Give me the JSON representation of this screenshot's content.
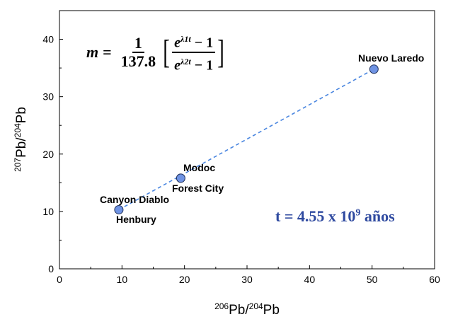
{
  "chart_data": {
    "type": "scatter",
    "xlabel_prefix": "206",
    "xlabel_mid": "Pb/",
    "xlabel_sup2": "204",
    "xlabel_end": "Pb",
    "ylabel_prefix": "207",
    "ylabel_mid": "Pb/",
    "ylabel_sup2": "204",
    "ylabel_end": "Pb",
    "xlim": [
      0,
      60
    ],
    "ylim": [
      0,
      45
    ],
    "xticks": [
      0,
      10,
      20,
      30,
      40,
      50,
      60
    ],
    "yticks": [
      0,
      10,
      20,
      30,
      40
    ],
    "points": [
      {
        "name": "Canyon Diablo",
        "x": 9.5,
        "y": 10.3
      },
      {
        "name": "Henbury",
        "x": 9.5,
        "y": 10.3
      },
      {
        "name": "Modoc",
        "x": 19.4,
        "y": 15.8
      },
      {
        "name": "Forest City",
        "x": 19.4,
        "y": 15.8
      },
      {
        "name": "Nuevo Laredo",
        "x": 50.3,
        "y": 34.8
      }
    ],
    "isochron": {
      "x": [
        9.5,
        50.3
      ],
      "y": [
        10.3,
        34.8
      ]
    },
    "point_color": "#6f93e3",
    "line_color": "#4a86e0"
  },
  "formula": {
    "lhs": "m",
    "eq": "=",
    "num": "1",
    "den": "137.8",
    "top_base": "e",
    "top_exp": "λ1t",
    "top_rest": " − 1",
    "bot_base": "e",
    "bot_exp": "λ2t",
    "bot_rest": " − 1"
  },
  "age": {
    "prefix": "t = 4.55 x 10",
    "exponent": "9",
    "suffix": " años",
    "color": "#2f4aa0"
  }
}
